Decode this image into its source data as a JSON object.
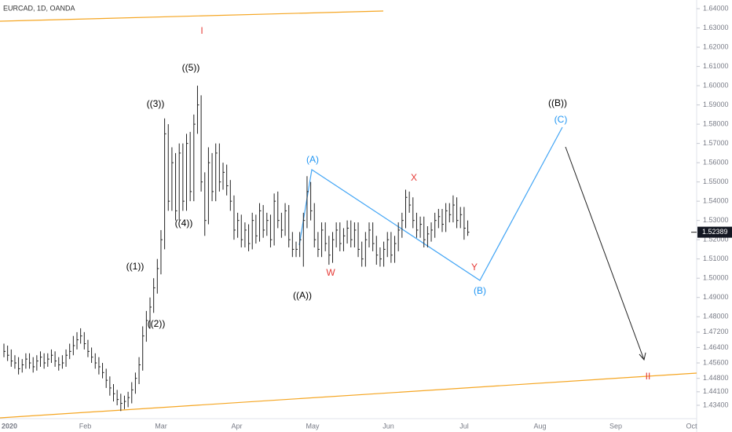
{
  "chart_data": {
    "type": "ohlc",
    "title": "EURCAD, 1D, OANDA",
    "bar_color": "#222222",
    "categories": [
      "2020",
      "Feb",
      "Mar",
      "Apr",
      "May",
      "Jun",
      "Jul",
      "Aug",
      "Sep",
      "Oct"
    ],
    "ylim": [
      1.4242,
      1.6445
    ],
    "yticks": [
      {
        "value": 1.64,
        "label": "1.64000"
      },
      {
        "value": 1.63,
        "label": "1.63000"
      },
      {
        "value": 1.62,
        "label": "1.62000"
      },
      {
        "value": 1.61,
        "label": "1.61000"
      },
      {
        "value": 1.6,
        "label": "1.60000"
      },
      {
        "value": 1.59,
        "label": "1.59000"
      },
      {
        "value": 1.58,
        "label": "1.58000"
      },
      {
        "value": 1.57,
        "label": "1.57000"
      },
      {
        "value": 1.56,
        "label": "1.56000"
      },
      {
        "value": 1.55,
        "label": "1.55000"
      },
      {
        "value": 1.54,
        "label": "1.54000"
      },
      {
        "value": 1.53,
        "label": "1.53000"
      },
      {
        "value": 1.52,
        "label": "1.52000"
      },
      {
        "value": 1.51,
        "label": "1.51000"
      },
      {
        "value": 1.5,
        "label": "1.50000"
      },
      {
        "value": 1.49,
        "label": "1.49000"
      },
      {
        "value": 1.48,
        "label": "1.48000"
      },
      {
        "value": 1.472,
        "label": "1.47200"
      },
      {
        "value": 1.464,
        "label": "1.46400"
      },
      {
        "value": 1.456,
        "label": "1.45600"
      },
      {
        "value": 1.448,
        "label": "1.44800"
      },
      {
        "value": 1.441,
        "label": "1.44100"
      },
      {
        "value": 1.434,
        "label": "1.43400"
      }
    ],
    "last_price": 1.52389,
    "high": [
      1.466,
      1.465,
      1.463,
      1.46,
      1.459,
      1.458,
      1.461,
      1.461,
      1.459,
      1.46,
      1.462,
      1.461,
      1.461,
      1.463,
      1.462,
      1.459,
      1.46,
      1.463,
      1.466,
      1.47,
      1.472,
      1.474,
      1.472,
      1.468,
      1.464,
      1.461,
      1.459,
      1.456,
      1.453,
      1.449,
      1.445,
      1.442,
      1.44,
      1.439,
      1.441,
      1.446,
      1.451,
      1.459,
      1.475,
      1.483,
      1.49,
      1.5,
      1.51,
      1.525,
      1.583,
      1.58,
      1.568,
      1.565,
      1.57,
      1.57,
      1.575,
      1.576,
      1.585,
      1.6,
      1.595,
      1.555,
      1.568,
      1.565,
      1.57,
      1.57,
      1.56,
      1.559,
      1.551,
      1.543,
      1.534,
      1.533,
      1.529,
      1.528,
      1.534,
      1.533,
      1.539,
      1.538,
      1.534,
      1.533,
      1.544,
      1.545,
      1.534,
      1.539,
      1.538,
      1.524,
      1.519,
      1.524,
      1.534,
      1.553,
      1.55,
      1.539,
      1.524,
      1.529,
      1.529,
      1.522,
      1.524,
      1.529,
      1.529,
      1.526,
      1.53,
      1.53,
      1.529,
      1.529,
      1.519,
      1.524,
      1.529,
      1.529,
      1.522,
      1.516,
      1.519,
      1.524,
      1.524,
      1.522,
      1.529,
      1.534,
      1.546,
      1.545,
      1.542,
      1.534,
      1.532,
      1.532,
      1.527,
      1.529,
      1.534,
      1.536,
      1.536,
      1.539,
      1.539,
      1.543,
      1.542,
      1.537,
      1.537,
      1.53
    ],
    "low": [
      1.459,
      1.457,
      1.454,
      1.453,
      1.45,
      1.451,
      1.453,
      1.453,
      1.451,
      1.452,
      1.454,
      1.453,
      1.454,
      1.456,
      1.454,
      1.452,
      1.453,
      1.454,
      1.458,
      1.46,
      1.463,
      1.466,
      1.463,
      1.459,
      1.456,
      1.453,
      1.45,
      1.448,
      1.443,
      1.439,
      1.436,
      1.434,
      1.431,
      1.432,
      1.433,
      1.435,
      1.44,
      1.445,
      1.452,
      1.467,
      1.474,
      1.482,
      1.492,
      1.502,
      1.515,
      1.535,
      1.535,
      1.53,
      1.53,
      1.535,
      1.535,
      1.54,
      1.54,
      1.575,
      1.545,
      1.522,
      1.528,
      1.54,
      1.54,
      1.545,
      1.546,
      1.543,
      1.535,
      1.52,
      1.521,
      1.516,
      1.516,
      1.514,
      1.515,
      1.518,
      1.519,
      1.521,
      1.522,
      1.516,
      1.517,
      1.526,
      1.521,
      1.522,
      1.516,
      1.511,
      1.511,
      1.511,
      1.506,
      1.526,
      1.53,
      1.516,
      1.511,
      1.511,
      1.514,
      1.507,
      1.508,
      1.516,
      1.514,
      1.514,
      1.518,
      1.516,
      1.516,
      1.511,
      1.506,
      1.506,
      1.516,
      1.514,
      1.507,
      1.506,
      1.506,
      1.511,
      1.508,
      1.508,
      1.514,
      1.521,
      1.526,
      1.534,
      1.526,
      1.521,
      1.521,
      1.516,
      1.516,
      1.519,
      1.521,
      1.526,
      1.524,
      1.524,
      1.529,
      1.529,
      1.526,
      1.526,
      1.52,
      1.522
    ],
    "close": [
      1.462,
      1.46,
      1.457,
      1.456,
      1.453,
      1.455,
      1.458,
      1.456,
      1.454,
      1.457,
      1.459,
      1.456,
      1.458,
      1.46,
      1.457,
      1.455,
      1.456,
      1.46,
      1.462,
      1.465,
      1.468,
      1.47,
      1.466,
      1.462,
      1.459,
      1.456,
      1.454,
      1.451,
      1.447,
      1.443,
      1.44,
      1.437,
      1.435,
      1.436,
      1.438,
      1.442,
      1.448,
      1.455,
      1.47,
      1.478,
      1.485,
      1.495,
      1.505,
      1.52,
      1.575,
      1.54,
      1.56,
      1.535,
      1.565,
      1.54,
      1.57,
      1.545,
      1.58,
      1.59,
      1.55,
      1.53,
      1.56,
      1.545,
      1.565,
      1.55,
      1.555,
      1.548,
      1.54,
      1.525,
      1.53,
      1.52,
      1.525,
      1.518,
      1.53,
      1.522,
      1.535,
      1.525,
      1.53,
      1.52,
      1.54,
      1.53,
      1.525,
      1.535,
      1.52,
      1.515,
      1.515,
      1.52,
      1.53,
      1.545,
      1.535,
      1.52,
      1.515,
      1.525,
      1.518,
      1.512,
      1.52,
      1.525,
      1.518,
      1.522,
      1.526,
      1.52,
      1.525,
      1.515,
      1.51,
      1.52,
      1.525,
      1.518,
      1.512,
      1.51,
      1.515,
      1.52,
      1.512,
      1.518,
      1.525,
      1.53,
      1.542,
      1.538,
      1.53,
      1.525,
      1.528,
      1.52,
      1.523,
      1.525,
      1.53,
      1.532,
      1.528,
      1.535,
      1.533,
      1.538,
      1.53,
      1.533,
      1.526,
      1.52389
    ],
    "annotations": [
      {
        "text": "I",
        "color": "#e53935"
      },
      {
        "text": "((5))",
        "color": "#000000"
      },
      {
        "text": "((3))",
        "color": "#000000"
      },
      {
        "text": "((4))",
        "color": "#000000"
      },
      {
        "text": "((1))",
        "color": "#000000"
      },
      {
        "text": "((2))",
        "color": "#000000"
      },
      {
        "text": "(A)",
        "color": "#2196f3"
      },
      {
        "text": "((A))",
        "color": "#000000"
      },
      {
        "text": "W",
        "color": "#e53935"
      },
      {
        "text": "X",
        "color": "#e53935"
      },
      {
        "text": "Y",
        "color": "#e53935"
      },
      {
        "text": "(B)",
        "color": "#2196f3"
      },
      {
        "text": "((B))",
        "color": "#000000"
      },
      {
        "text": "(C)",
        "color": "#2196f3"
      },
      {
        "text": "II",
        "color": "#e53935"
      }
    ]
  }
}
